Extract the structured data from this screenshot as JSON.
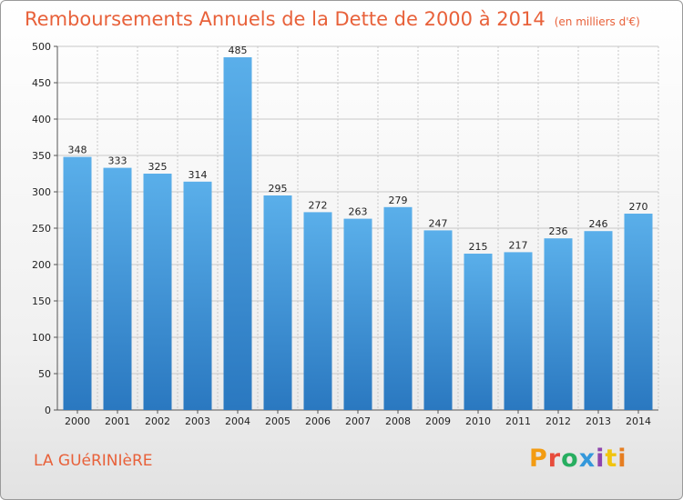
{
  "page": {
    "title": "Remboursements Annuels de la Dette de 2000 à 2014",
    "unit": "(en milliers d'€)",
    "commune": "LA GUéRINIèRE",
    "logo": "Proxiti",
    "logo_colors": [
      "#f39c12",
      "#e74c3c",
      "#27ae60",
      "#3498db",
      "#8e44ad",
      "#f1c40f",
      "#e67e22"
    ]
  },
  "chart_data": {
    "type": "bar",
    "title": "Remboursements Annuels de la Dette de 2000 à 2014",
    "subtitle": "(en milliers d'€)",
    "xlabel": "",
    "ylabel": "",
    "categories": [
      "2000",
      "2001",
      "2002",
      "2003",
      "2004",
      "2005",
      "2006",
      "2007",
      "2008",
      "2009",
      "2010",
      "2011",
      "2012",
      "2013",
      "2014"
    ],
    "values": [
      348,
      333,
      325,
      314,
      485,
      295,
      272,
      263,
      279,
      247,
      215,
      217,
      236,
      246,
      270
    ],
    "ylim": [
      0,
      500
    ],
    "yticks": [
      0,
      50,
      100,
      150,
      200,
      250,
      300,
      350,
      400,
      450,
      500
    ],
    "grid": true,
    "bar_color_top": "#5aafea",
    "bar_color_bottom": "#2a78c0",
    "grid_color": "#c8c8c8"
  }
}
